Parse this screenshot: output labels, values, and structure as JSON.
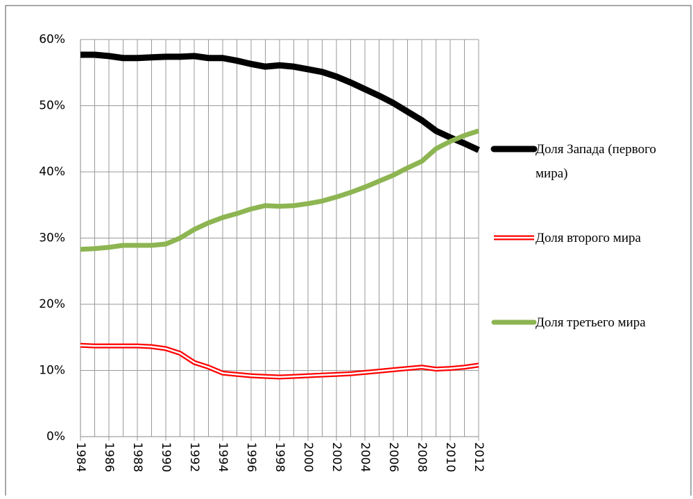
{
  "chart_data": {
    "type": "line",
    "x": [
      1984,
      1985,
      1986,
      1987,
      1988,
      1989,
      1990,
      1991,
      1992,
      1993,
      1994,
      1995,
      1996,
      1997,
      1998,
      1999,
      2000,
      2001,
      2002,
      2003,
      2004,
      2005,
      2006,
      2007,
      2008,
      2009,
      2010,
      2011,
      2012
    ],
    "series": [
      {
        "name": "Доля Запада (первого мира)",
        "color": "#000000",
        "values": [
          57.7,
          57.7,
          57.5,
          57.2,
          57.2,
          57.3,
          57.4,
          57.4,
          57.5,
          57.2,
          57.2,
          56.8,
          56.3,
          55.9,
          56.1,
          55.9,
          55.5,
          55.1,
          54.4,
          53.5,
          52.5,
          51.5,
          50.4,
          49.1,
          47.8,
          46.2,
          45.2,
          44.3,
          43.3
        ]
      },
      {
        "name": "Доля второго мира",
        "color": "#ff0000",
        "style": "double",
        "values": [
          13.8,
          13.7,
          13.7,
          13.7,
          13.7,
          13.6,
          13.3,
          12.6,
          11.2,
          10.5,
          9.6,
          9.4,
          9.2,
          9.1,
          9.0,
          9.1,
          9.2,
          9.3,
          9.4,
          9.5,
          9.7,
          9.9,
          10.1,
          10.3,
          10.5,
          10.2,
          10.3,
          10.5,
          10.8
        ]
      },
      {
        "name": "Доля третьего мира",
        "color": "#8db552",
        "values": [
          28.3,
          28.4,
          28.6,
          28.9,
          28.9,
          28.9,
          29.1,
          30.0,
          31.3,
          32.3,
          33.1,
          33.7,
          34.4,
          34.9,
          34.8,
          34.9,
          35.2,
          35.6,
          36.2,
          36.9,
          37.7,
          38.6,
          39.5,
          40.6,
          41.6,
          43.5,
          44.6,
          45.5,
          46.2
        ]
      }
    ],
    "xlim": [
      1984,
      2012
    ],
    "xticks": [
      1984,
      1986,
      1988,
      1990,
      1992,
      1994,
      1996,
      1998,
      2000,
      2002,
      2004,
      2006,
      2008,
      2010,
      2012
    ],
    "xgrid_step": 1,
    "ylim": [
      0,
      60
    ],
    "yticks": [
      {
        "value": 0,
        "label": "0%"
      },
      {
        "value": 10,
        "label": "10%"
      },
      {
        "value": 20,
        "label": "20%"
      },
      {
        "value": 30,
        "label": "30%"
      },
      {
        "value": 40,
        "label": "40%"
      },
      {
        "value": 50,
        "label": "50%"
      },
      {
        "value": 60,
        "label": "60%"
      }
    ],
    "grid": true,
    "legend": "right"
  }
}
